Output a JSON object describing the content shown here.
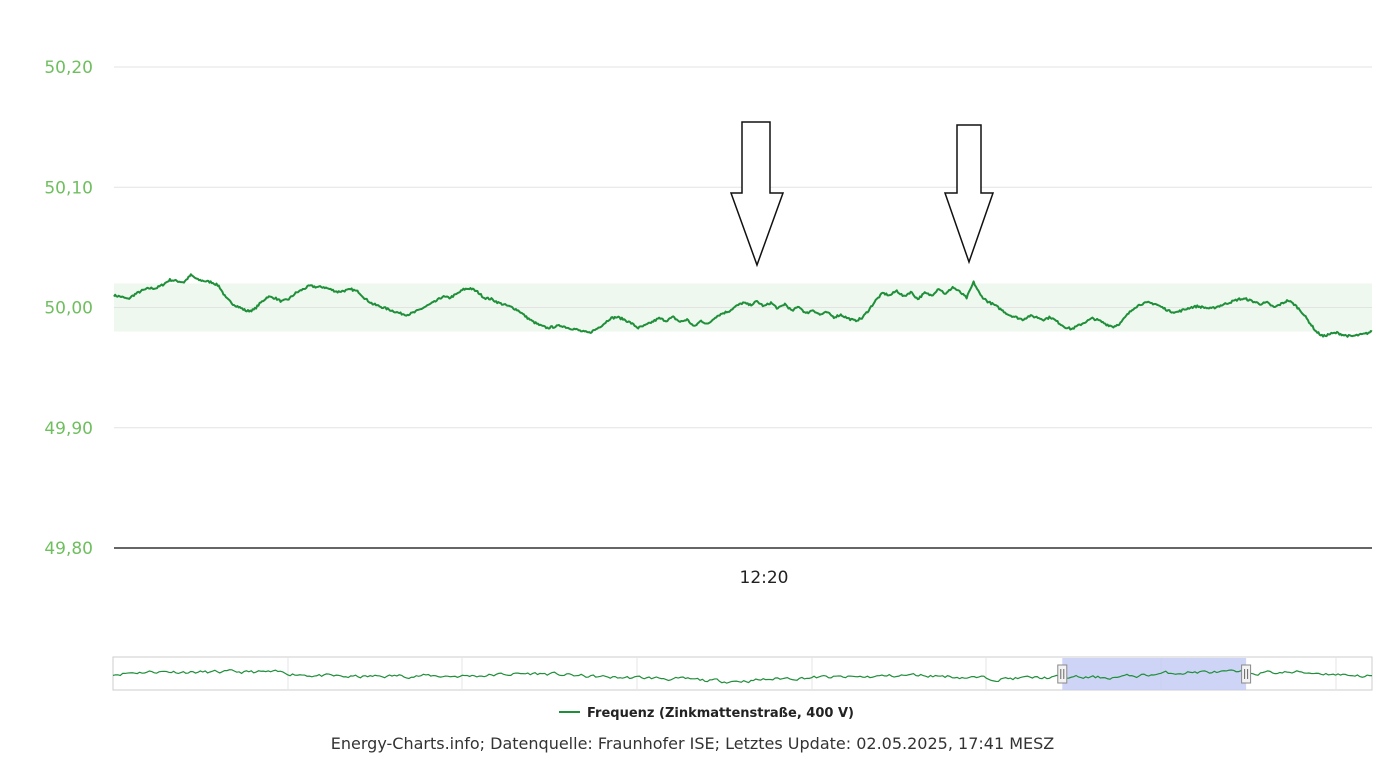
{
  "chart_data": {
    "type": "line",
    "title": "",
    "xlabel": "",
    "ylabel": "",
    "ylim": [
      49.8,
      50.2
    ],
    "yticks": [
      "50,20",
      "50,10",
      "50,00",
      "49,90",
      "49,80"
    ],
    "ytick_values": [
      50.2,
      50.1,
      50.0,
      49.9,
      49.8
    ],
    "xticks": [
      "12:20"
    ],
    "tolerance_band": [
      49.98,
      50.02
    ],
    "grid": true,
    "legend_position": "bottom",
    "series": [
      {
        "name": "Frequenz (Zinkmattenstraße, 400 V)",
        "color": "#1f8f3a",
        "values": [
          50.01,
          50.009,
          50.007,
          50.011,
          50.014,
          50.016,
          50.016,
          50.019,
          50.023,
          50.022,
          50.021,
          50.027,
          50.023,
          50.022,
          50.021,
          50.018,
          50.008,
          50.003,
          50.0,
          49.997,
          49.998,
          50.004,
          50.009,
          50.008,
          50.005,
          50.007,
          50.012,
          50.015,
          50.018,
          50.017,
          50.017,
          50.015,
          50.013,
          50.014,
          50.015,
          50.013,
          50.007,
          50.003,
          50.001,
          49.999,
          49.997,
          49.995,
          49.994,
          49.996,
          49.999,
          50.002,
          50.005,
          50.009,
          50.008,
          50.011,
          50.015,
          50.016,
          50.013,
          50.008,
          50.007,
          50.004,
          50.002,
          50.0,
          49.997,
          49.992,
          49.988,
          49.985,
          49.983,
          49.984,
          49.985,
          49.983,
          49.982,
          49.98,
          49.979,
          49.982,
          49.986,
          49.991,
          49.992,
          49.99,
          49.987,
          49.983,
          49.985,
          49.988,
          49.991,
          49.989,
          49.992,
          49.988,
          49.99,
          49.984,
          49.989,
          49.986,
          49.992,
          49.995,
          49.997,
          50.001,
          50.004,
          50.002,
          50.005,
          50.001,
          50.004,
          49.999,
          50.003,
          49.997,
          50.001,
          49.995,
          49.998,
          49.994,
          49.996,
          49.992,
          49.994,
          49.991,
          49.989,
          49.991,
          49.998,
          50.006,
          50.012,
          50.01,
          50.014,
          50.009,
          50.013,
          50.007,
          50.012,
          50.01,
          50.016,
          50.011,
          50.017,
          50.013,
          50.008,
          50.021,
          50.01,
          50.005,
          50.002,
          49.998,
          49.994,
          49.992,
          49.99,
          49.993,
          49.992,
          49.99,
          49.992,
          49.988,
          49.984,
          49.982,
          49.985,
          49.988,
          49.991,
          49.989,
          49.986,
          49.984,
          49.987,
          49.994,
          50.0,
          50.003,
          50.004,
          50.003,
          50.0,
          49.997,
          49.996,
          49.998,
          50.0,
          50.001,
          50.0,
          49.999,
          50.001,
          50.003,
          50.005,
          50.007,
          50.007,
          50.005,
          50.003,
          50.004,
          50.0,
          50.003,
          50.006,
          50.002,
          49.996,
          49.988,
          49.98,
          49.976,
          49.978,
          49.979,
          49.977,
          49.976,
          49.977,
          49.978,
          49.98
        ]
      }
    ],
    "navigator": {
      "selected_range_fraction": [
        0.754,
        0.9
      ]
    }
  },
  "footer": {
    "text": "Energy-Charts.info; Datenquelle: Fraunhofer ISE; Letztes Update: 02.05.2025, 17:41 MESZ"
  }
}
